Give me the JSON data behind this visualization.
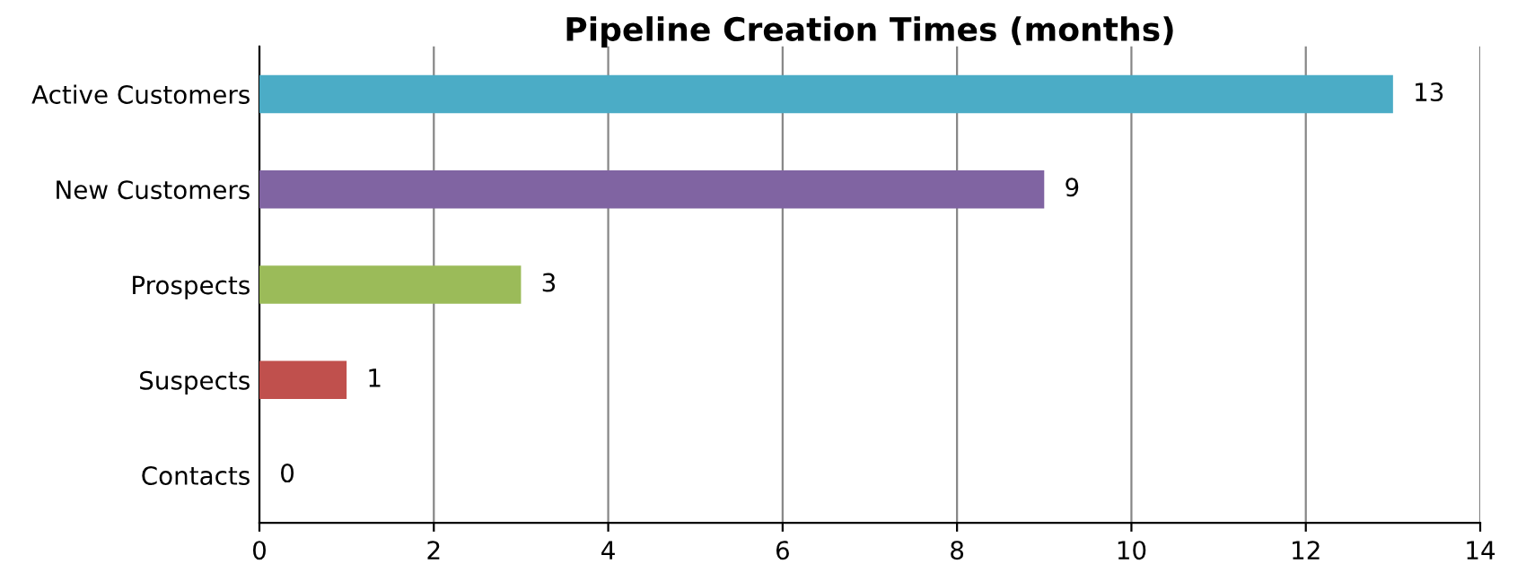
{
  "chart_data": {
    "type": "bar",
    "orientation": "horizontal",
    "title": "Pipeline Creation Times (months)",
    "categories": [
      "Active Customers",
      "New Customers",
      "Prospects",
      "Suspects",
      "Contacts"
    ],
    "values": [
      13,
      9,
      3,
      1,
      0
    ],
    "colors": [
      "#4bacc6",
      "#8064a2",
      "#9bbb59",
      "#c0504d",
      "#f79646"
    ],
    "xlim": [
      0,
      14
    ],
    "xticks": [
      0,
      2,
      4,
      6,
      8,
      10,
      12,
      14
    ],
    "grid": "x",
    "data_labels": true
  }
}
